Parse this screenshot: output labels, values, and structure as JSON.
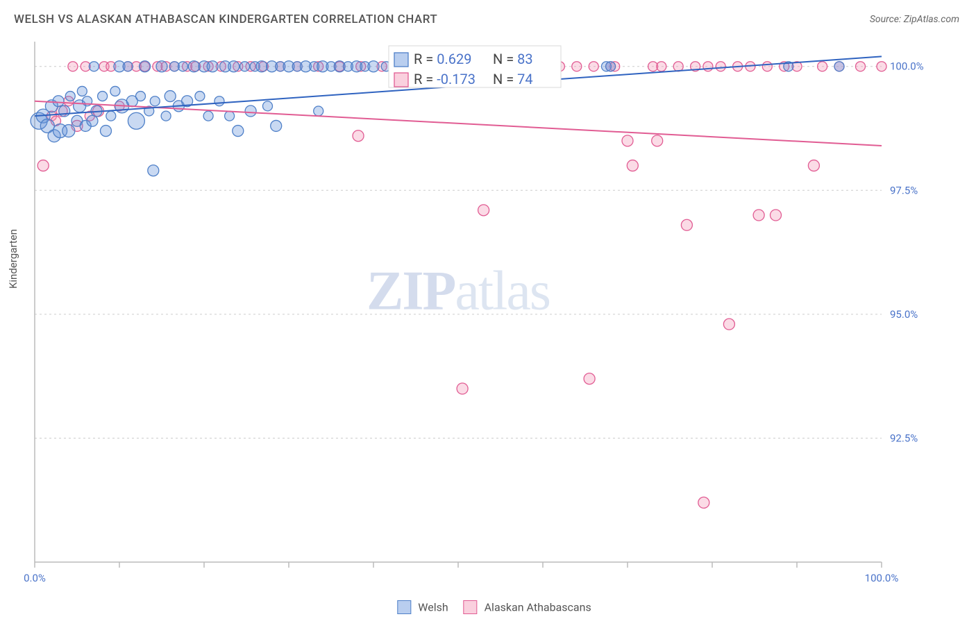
{
  "title": "WELSH VS ALASKAN ATHABASCAN KINDERGARTEN CORRELATION CHART",
  "source": "Source: ZipAtlas.com",
  "ylabel": "Kindergarten",
  "watermark_left": "ZIP",
  "watermark_right": "atlas",
  "chart": {
    "type": "scatter-with-regression",
    "xlim": [
      0,
      100
    ],
    "ylim": [
      90.0,
      100.5
    ],
    "xtick_positions": [
      0,
      10,
      20,
      30,
      40,
      50,
      60,
      70,
      80,
      90,
      100
    ],
    "xtick_labels": [
      "0.0%",
      "",
      "",
      "",
      "",
      "",
      "",
      "",
      "",
      "",
      "100.0%"
    ],
    "ytick_positions": [
      92.5,
      95.0,
      97.5,
      100.0
    ],
    "ytick_labels": [
      "92.5%",
      "95.0%",
      "97.5%",
      "100.0%"
    ],
    "grid_color": "#cccccc",
    "background": "#ffffff",
    "series": {
      "welsh": {
        "label": "Welsh",
        "color_fill": "rgba(99,147,219,0.35)",
        "color_stroke": "#4f80c8",
        "R": 0.629,
        "N": 83,
        "regression": {
          "x1": 0,
          "y1": 99.0,
          "x2": 100,
          "y2": 100.2,
          "color": "#2f63c0",
          "width": 2
        },
        "points": [
          {
            "x": 0.5,
            "y": 98.9,
            "r": 12
          },
          {
            "x": 1,
            "y": 99.0,
            "r": 10
          },
          {
            "x": 1.5,
            "y": 98.8,
            "r": 10
          },
          {
            "x": 2,
            "y": 99.2,
            "r": 9
          },
          {
            "x": 2.3,
            "y": 98.6,
            "r": 9
          },
          {
            "x": 2.8,
            "y": 99.3,
            "r": 8
          },
          {
            "x": 3,
            "y": 98.7,
            "r": 10
          },
          {
            "x": 3.5,
            "y": 99.1,
            "r": 8
          },
          {
            "x": 4,
            "y": 98.7,
            "r": 9
          },
          {
            "x": 4.2,
            "y": 99.4,
            "r": 7
          },
          {
            "x": 5,
            "y": 98.9,
            "r": 8
          },
          {
            "x": 5.3,
            "y": 99.2,
            "r": 9
          },
          {
            "x": 5.6,
            "y": 99.5,
            "r": 7
          },
          {
            "x": 6,
            "y": 98.8,
            "r": 8
          },
          {
            "x": 6.2,
            "y": 99.3,
            "r": 7
          },
          {
            "x": 6.8,
            "y": 98.9,
            "r": 8
          },
          {
            "x": 7,
            "y": 100.0,
            "r": 7
          },
          {
            "x": 7.3,
            "y": 99.1,
            "r": 8
          },
          {
            "x": 8,
            "y": 99.4,
            "r": 7
          },
          {
            "x": 8.4,
            "y": 98.7,
            "r": 8
          },
          {
            "x": 9,
            "y": 99.0,
            "r": 7
          },
          {
            "x": 9.5,
            "y": 99.5,
            "r": 7
          },
          {
            "x": 10,
            "y": 100.0,
            "r": 8
          },
          {
            "x": 10.3,
            "y": 99.2,
            "r": 10
          },
          {
            "x": 11,
            "y": 100.0,
            "r": 7
          },
          {
            "x": 11.5,
            "y": 99.3,
            "r": 8
          },
          {
            "x": 12,
            "y": 98.9,
            "r": 12
          },
          {
            "x": 12.5,
            "y": 99.4,
            "r": 7
          },
          {
            "x": 13,
            "y": 100.0,
            "r": 8
          },
          {
            "x": 13.5,
            "y": 99.1,
            "r": 7
          },
          {
            "x": 14,
            "y": 97.9,
            "r": 8
          },
          {
            "x": 14.2,
            "y": 99.3,
            "r": 7
          },
          {
            "x": 15,
            "y": 100.0,
            "r": 8
          },
          {
            "x": 15.5,
            "y": 99.0,
            "r": 7
          },
          {
            "x": 16,
            "y": 99.4,
            "r": 8
          },
          {
            "x": 16.5,
            "y": 100.0,
            "r": 7
          },
          {
            "x": 17,
            "y": 99.2,
            "r": 8
          },
          {
            "x": 17.5,
            "y": 100.0,
            "r": 7
          },
          {
            "x": 18,
            "y": 99.3,
            "r": 8
          },
          {
            "x": 18.8,
            "y": 100.0,
            "r": 8
          },
          {
            "x": 19.5,
            "y": 99.4,
            "r": 7
          },
          {
            "x": 20,
            "y": 100.0,
            "r": 8
          },
          {
            "x": 20.5,
            "y": 99.0,
            "r": 7
          },
          {
            "x": 21,
            "y": 100.0,
            "r": 8
          },
          {
            "x": 21.8,
            "y": 99.3,
            "r": 7
          },
          {
            "x": 22.5,
            "y": 100.0,
            "r": 8
          },
          {
            "x": 23,
            "y": 99.0,
            "r": 7
          },
          {
            "x": 23.5,
            "y": 100.0,
            "r": 8
          },
          {
            "x": 24,
            "y": 98.7,
            "r": 8
          },
          {
            "x": 24.8,
            "y": 100.0,
            "r": 7
          },
          {
            "x": 25.5,
            "y": 99.1,
            "r": 8
          },
          {
            "x": 26,
            "y": 100.0,
            "r": 7
          },
          {
            "x": 26.8,
            "y": 100.0,
            "r": 8
          },
          {
            "x": 27.5,
            "y": 99.2,
            "r": 7
          },
          {
            "x": 28,
            "y": 100.0,
            "r": 8
          },
          {
            "x": 28.5,
            "y": 98.8,
            "r": 8
          },
          {
            "x": 29,
            "y": 100.0,
            "r": 7
          },
          {
            "x": 30,
            "y": 100.0,
            "r": 8
          },
          {
            "x": 31,
            "y": 100.0,
            "r": 7
          },
          {
            "x": 32,
            "y": 100.0,
            "r": 8
          },
          {
            "x": 33,
            "y": 100.0,
            "r": 7
          },
          {
            "x": 33.5,
            "y": 99.1,
            "r": 7
          },
          {
            "x": 34,
            "y": 100.0,
            "r": 8
          },
          {
            "x": 35,
            "y": 100.0,
            "r": 7
          },
          {
            "x": 36,
            "y": 100.0,
            "r": 8
          },
          {
            "x": 37,
            "y": 100.0,
            "r": 7
          },
          {
            "x": 38,
            "y": 100.0,
            "r": 8
          },
          {
            "x": 39,
            "y": 100.0,
            "r": 7
          },
          {
            "x": 40,
            "y": 100.0,
            "r": 8
          },
          {
            "x": 41.5,
            "y": 100.0,
            "r": 7
          },
          {
            "x": 43,
            "y": 100.0,
            "r": 8
          },
          {
            "x": 45,
            "y": 100.0,
            "r": 7
          },
          {
            "x": 47,
            "y": 100.0,
            "r": 8
          },
          {
            "x": 49,
            "y": 100.0,
            "r": 7
          },
          {
            "x": 50,
            "y": 100.0,
            "r": 7
          },
          {
            "x": 52,
            "y": 100.0,
            "r": 7
          },
          {
            "x": 54,
            "y": 100.0,
            "r": 7
          },
          {
            "x": 56,
            "y": 100.0,
            "r": 7
          },
          {
            "x": 60,
            "y": 100.0,
            "r": 7
          },
          {
            "x": 67.5,
            "y": 100.0,
            "r": 7
          },
          {
            "x": 68,
            "y": 100.0,
            "r": 7
          },
          {
            "x": 89,
            "y": 100.0,
            "r": 7
          },
          {
            "x": 95,
            "y": 100.0,
            "r": 7
          }
        ]
      },
      "athabascan": {
        "label": "Alaskan Athabascans",
        "color_fill": "rgba(243,151,182,0.35)",
        "color_stroke": "#e15c93",
        "R": -0.173,
        "N": 74,
        "regression": {
          "x1": 0,
          "y1": 99.3,
          "x2": 100,
          "y2": 98.4,
          "color": "#e15c93",
          "width": 2
        },
        "points": [
          {
            "x": 1,
            "y": 98.0,
            "r": 8
          },
          {
            "x": 2,
            "y": 99.0,
            "r": 7
          },
          {
            "x": 2.5,
            "y": 98.9,
            "r": 7
          },
          {
            "x": 3.2,
            "y": 99.1,
            "r": 8
          },
          {
            "x": 4,
            "y": 99.3,
            "r": 7
          },
          {
            "x": 4.5,
            "y": 100.0,
            "r": 7
          },
          {
            "x": 5,
            "y": 98.8,
            "r": 8
          },
          {
            "x": 6,
            "y": 100.0,
            "r": 7
          },
          {
            "x": 6.5,
            "y": 99.0,
            "r": 7
          },
          {
            "x": 7.5,
            "y": 99.1,
            "r": 8
          },
          {
            "x": 8.2,
            "y": 100.0,
            "r": 7
          },
          {
            "x": 9,
            "y": 100.0,
            "r": 7
          },
          {
            "x": 10,
            "y": 99.2,
            "r": 7
          },
          {
            "x": 11,
            "y": 100.0,
            "r": 7
          },
          {
            "x": 12,
            "y": 100.0,
            "r": 7
          },
          {
            "x": 13,
            "y": 100.0,
            "r": 7
          },
          {
            "x": 14.5,
            "y": 100.0,
            "r": 7
          },
          {
            "x": 15.5,
            "y": 100.0,
            "r": 7
          },
          {
            "x": 16.5,
            "y": 100.0,
            "r": 7
          },
          {
            "x": 18,
            "y": 100.0,
            "r": 7
          },
          {
            "x": 19,
            "y": 100.0,
            "r": 7
          },
          {
            "x": 20.5,
            "y": 100.0,
            "r": 7
          },
          {
            "x": 22,
            "y": 100.0,
            "r": 7
          },
          {
            "x": 24,
            "y": 100.0,
            "r": 7
          },
          {
            "x": 25.5,
            "y": 100.0,
            "r": 7
          },
          {
            "x": 27,
            "y": 100.0,
            "r": 7
          },
          {
            "x": 29,
            "y": 100.0,
            "r": 7
          },
          {
            "x": 31,
            "y": 100.0,
            "r": 7
          },
          {
            "x": 33.5,
            "y": 100.0,
            "r": 7
          },
          {
            "x": 36,
            "y": 100.0,
            "r": 7
          },
          {
            "x": 38.2,
            "y": 98.6,
            "r": 8
          },
          {
            "x": 38.5,
            "y": 100.0,
            "r": 7
          },
          {
            "x": 41,
            "y": 100.0,
            "r": 7
          },
          {
            "x": 44,
            "y": 100.0,
            "r": 7
          },
          {
            "x": 46,
            "y": 100.0,
            "r": 7
          },
          {
            "x": 48,
            "y": 100.0,
            "r": 7
          },
          {
            "x": 50,
            "y": 100.0,
            "r": 7
          },
          {
            "x": 50.5,
            "y": 93.5,
            "r": 8
          },
          {
            "x": 52,
            "y": 100.0,
            "r": 7
          },
          {
            "x": 53,
            "y": 97.1,
            "r": 8
          },
          {
            "x": 54.5,
            "y": 100.0,
            "r": 7
          },
          {
            "x": 56,
            "y": 100.0,
            "r": 7
          },
          {
            "x": 58,
            "y": 100.0,
            "r": 7
          },
          {
            "x": 60,
            "y": 100.0,
            "r": 7
          },
          {
            "x": 62,
            "y": 100.0,
            "r": 7
          },
          {
            "x": 64,
            "y": 100.0,
            "r": 7
          },
          {
            "x": 65.5,
            "y": 93.7,
            "r": 8
          },
          {
            "x": 66,
            "y": 100.0,
            "r": 7
          },
          {
            "x": 68,
            "y": 100.0,
            "r": 7
          },
          {
            "x": 68.5,
            "y": 100.0,
            "r": 7
          },
          {
            "x": 70,
            "y": 98.5,
            "r": 8
          },
          {
            "x": 70.6,
            "y": 98.0,
            "r": 8
          },
          {
            "x": 73,
            "y": 100.0,
            "r": 7
          },
          {
            "x": 73.5,
            "y": 98.5,
            "r": 8
          },
          {
            "x": 74,
            "y": 100.0,
            "r": 7
          },
          {
            "x": 76,
            "y": 100.0,
            "r": 7
          },
          {
            "x": 77,
            "y": 96.8,
            "r": 8
          },
          {
            "x": 78,
            "y": 100.0,
            "r": 7
          },
          {
            "x": 79,
            "y": 91.2,
            "r": 8
          },
          {
            "x": 79.5,
            "y": 100.0,
            "r": 7
          },
          {
            "x": 81,
            "y": 100.0,
            "r": 7
          },
          {
            "x": 82,
            "y": 94.8,
            "r": 8
          },
          {
            "x": 83,
            "y": 100.0,
            "r": 7
          },
          {
            "x": 84.5,
            "y": 100.0,
            "r": 7
          },
          {
            "x": 85.5,
            "y": 97.0,
            "r": 8
          },
          {
            "x": 86.5,
            "y": 100.0,
            "r": 7
          },
          {
            "x": 87.5,
            "y": 97.0,
            "r": 8
          },
          {
            "x": 88.5,
            "y": 100.0,
            "r": 7
          },
          {
            "x": 90,
            "y": 100.0,
            "r": 7
          },
          {
            "x": 92,
            "y": 98.0,
            "r": 8
          },
          {
            "x": 93,
            "y": 100.0,
            "r": 7
          },
          {
            "x": 95,
            "y": 100.0,
            "r": 7
          },
          {
            "x": 97.5,
            "y": 100.0,
            "r": 7
          },
          {
            "x": 100,
            "y": 100.0,
            "r": 7
          }
        ]
      }
    }
  },
  "stats_box": {
    "row1": {
      "swatch_color": "rgba(99,147,219,0.45)",
      "swatch_stroke": "#4f80c8",
      "R_label": "R =",
      "R_val": "0.629",
      "N_label": "N =",
      "N_val": "83"
    },
    "row2": {
      "swatch_color": "rgba(243,151,182,0.45)",
      "swatch_stroke": "#e15c93",
      "R_label": "R =",
      "R_val": "-0.173",
      "N_label": "N =",
      "N_val": "74"
    }
  },
  "legend_bottom": {
    "label1": "Welsh",
    "label2": "Alaskan Athabascans"
  }
}
